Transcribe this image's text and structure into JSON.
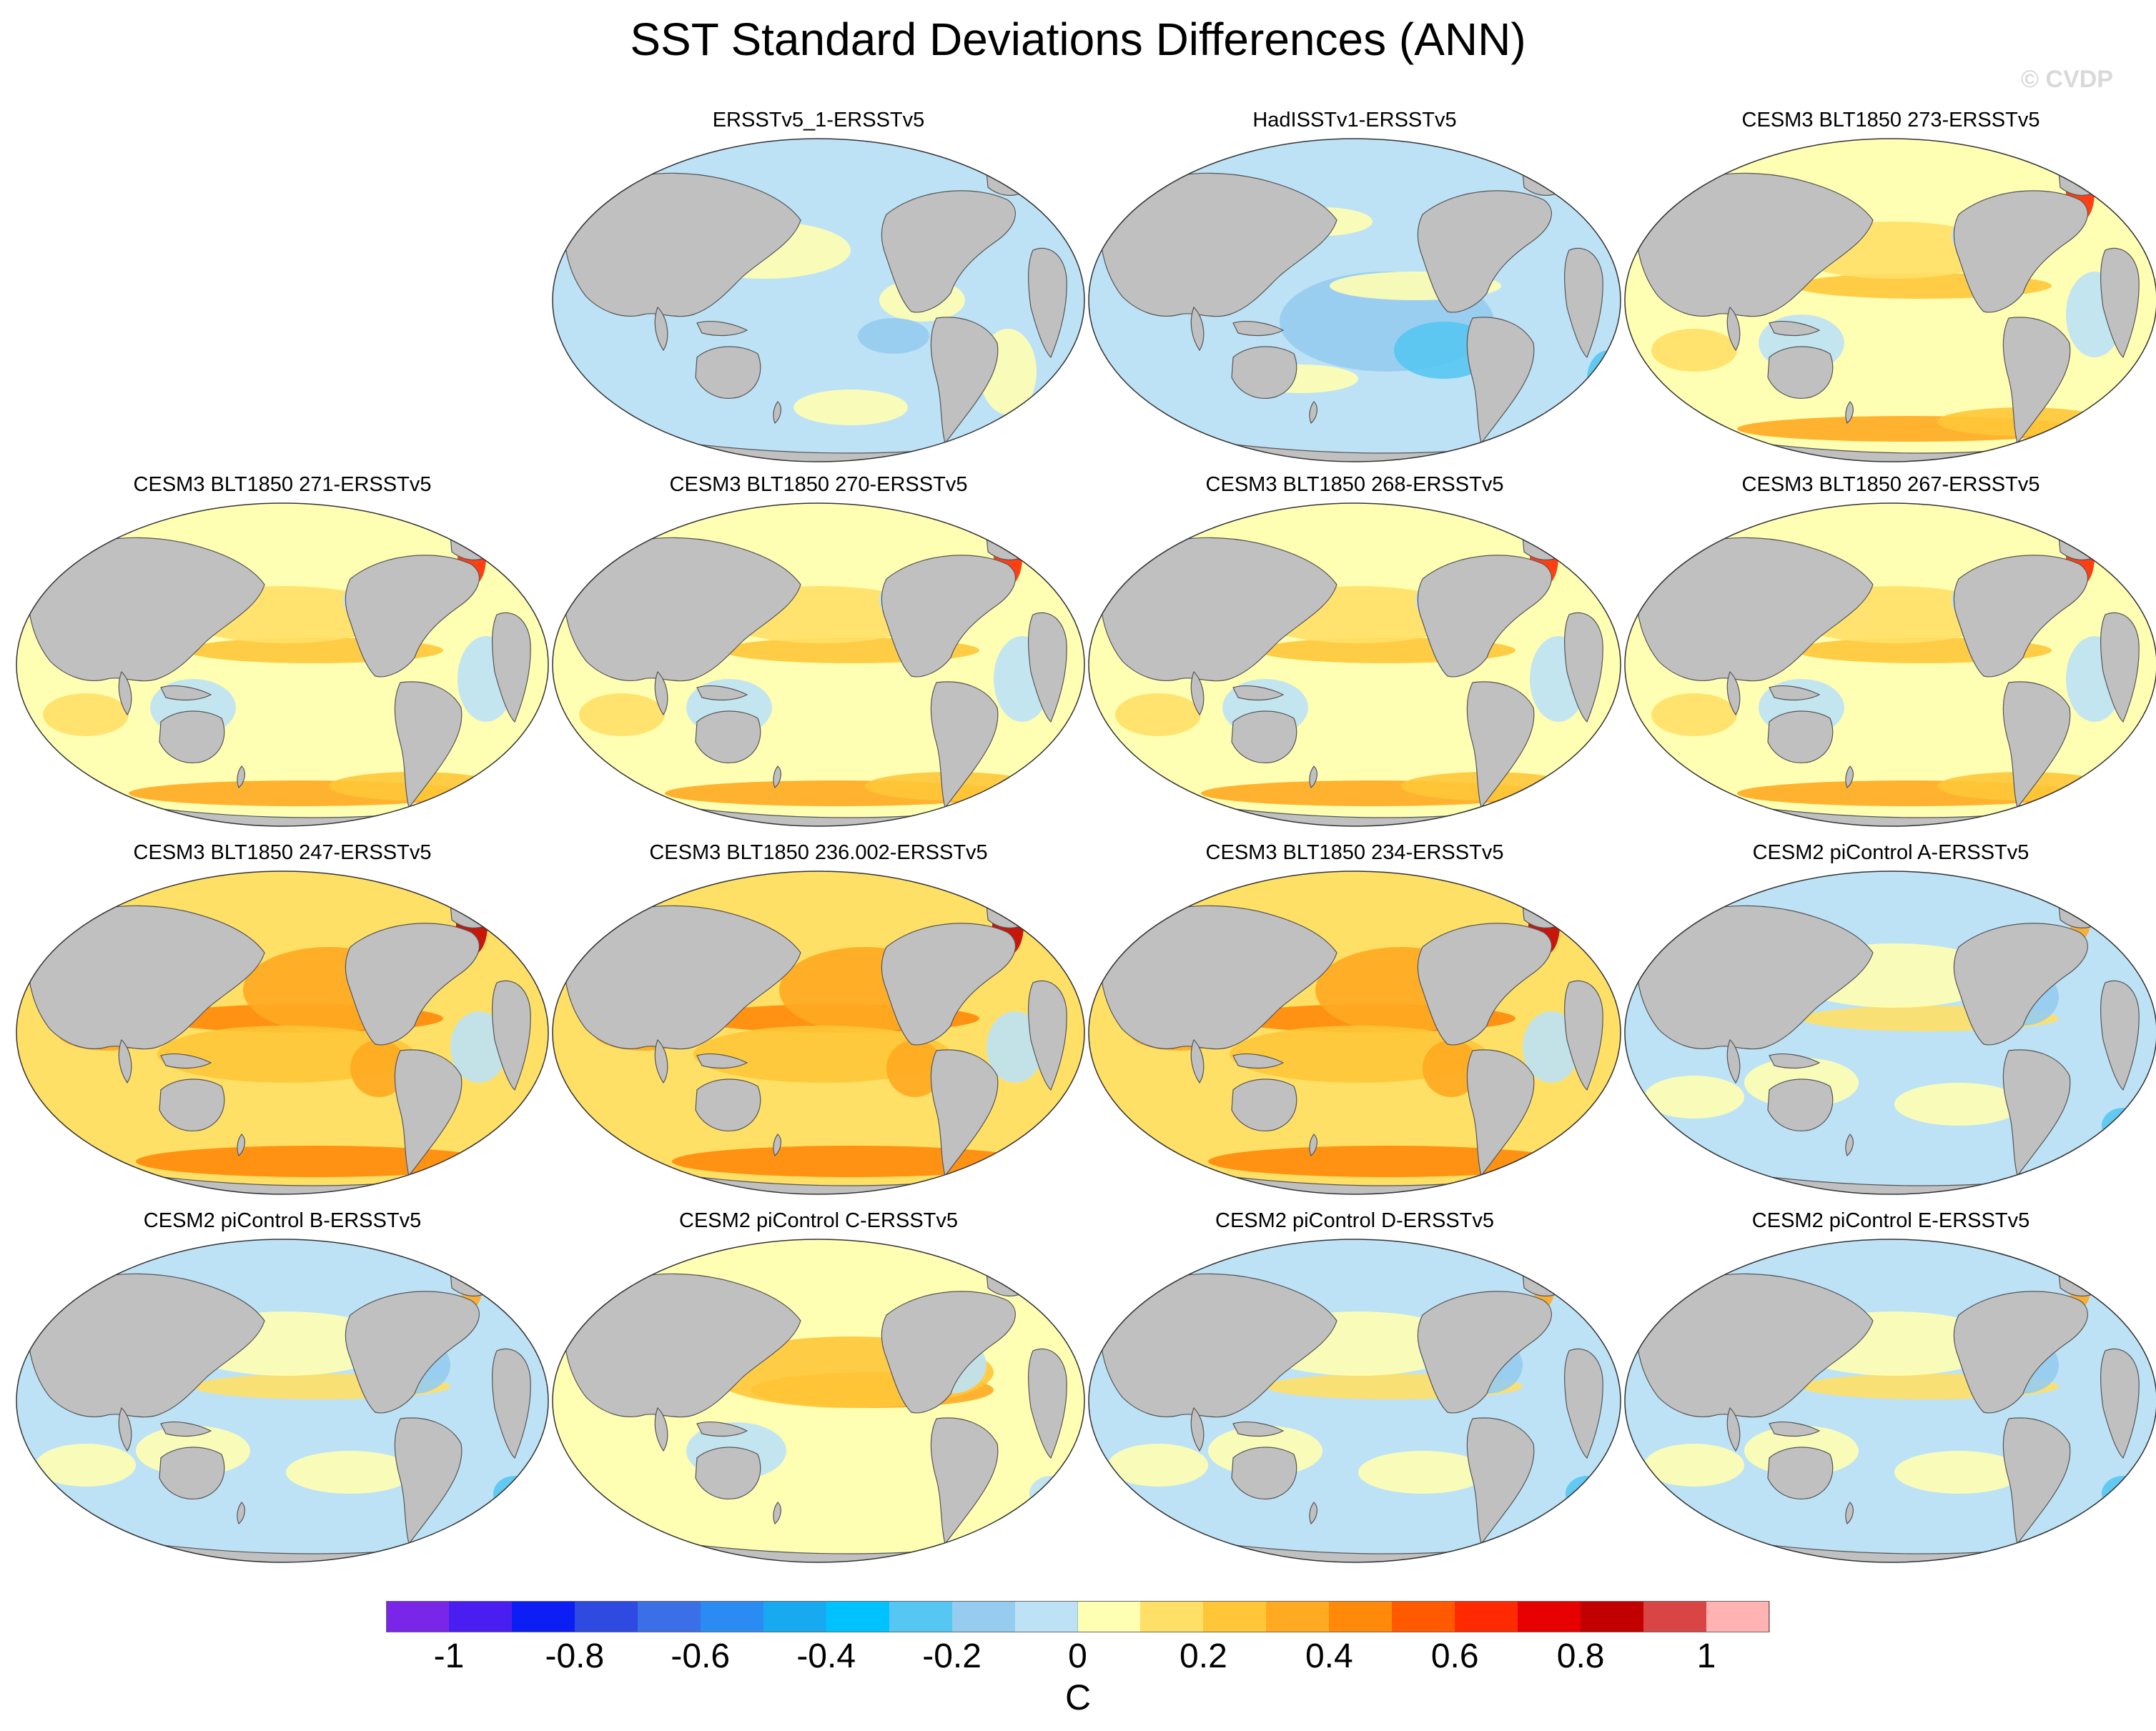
{
  "title": "SST Standard Deviations Differences (ANN)",
  "watermark": "© CVDP",
  "colorbar": {
    "unit": "C",
    "tick_labels": [
      "-1",
      "-0.8",
      "-0.6",
      "-0.4",
      "-0.2",
      "0",
      "0.2",
      "0.4",
      "0.6",
      "0.8",
      "1"
    ],
    "colors": [
      "#7a26e8",
      "#4a1ef0",
      "#0d1ef5",
      "#2e4ae0",
      "#3b6fe8",
      "#2a8cf2",
      "#18aaf0",
      "#00c2ff",
      "#56c6f2",
      "#96ccf0",
      "#bde2f6",
      "#ffffb3",
      "#ffe066",
      "#ffc638",
      "#ffaa20",
      "#ff8a0a",
      "#ff5a00",
      "#ff2a00",
      "#e60000",
      "#c20000",
      "#d94444",
      "#ffb3b3"
    ]
  },
  "colors": {
    "land": "#c0c0c0",
    "coast": "#555555",
    "ocean_neutral": "#ffffb3"
  },
  "panels": [
    {
      "label": "ERSSTv5_1-ERSSTv5",
      "style": "obs1"
    },
    {
      "label": "HadISSTv1-ERSSTv5",
      "style": "obs2"
    },
    {
      "label": "CESM3 BLT1850 273-ERSSTv5",
      "style": "cesm3"
    },
    {
      "label": "CESM3 BLT1850 271-ERSSTv5",
      "style": "cesm3"
    },
    {
      "label": "CESM3 BLT1850 270-ERSSTv5",
      "style": "cesm3"
    },
    {
      "label": "CESM3 BLT1850 268-ERSSTv5",
      "style": "cesm3"
    },
    {
      "label": "CESM3 BLT1850 267-ERSSTv5",
      "style": "cesm3"
    },
    {
      "label": "CESM3 BLT1850 247-ERSSTv5",
      "style": "strong"
    },
    {
      "label": "CESM3 BLT1850 236.002-ERSSTv5",
      "style": "strong"
    },
    {
      "label": "CESM3 BLT1850 234-ERSSTv5",
      "style": "strong"
    },
    {
      "label": "CESM2 piControl A-ERSSTv5",
      "style": "cesm2"
    },
    {
      "label": "CESM2 piControl B-ERSSTv5",
      "style": "cesm2"
    },
    {
      "label": "CESM2 piControl C-ERSSTv5",
      "style": "cesm2c"
    },
    {
      "label": "CESM2 piControl D-ERSSTv5",
      "style": "cesm2"
    },
    {
      "label": "CESM2 piControl E-ERSSTv5",
      "style": "cesm2"
    }
  ]
}
